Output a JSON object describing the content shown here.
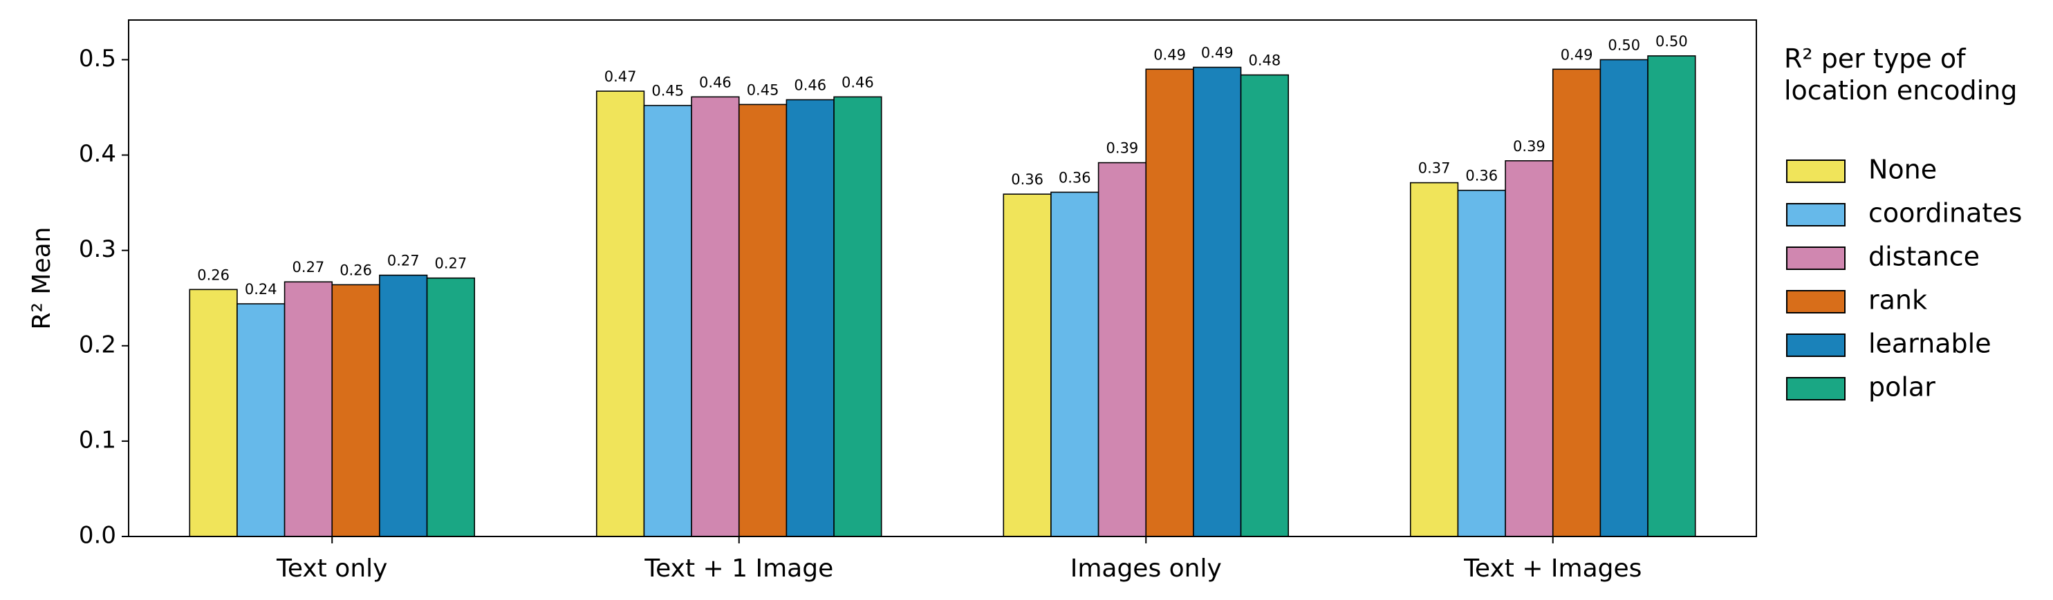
{
  "chart_data": {
    "type": "bar",
    "y_label": "R² Mean",
    "legend_title": "R² per type of location encoding",
    "categories": [
      "Text only",
      "Text + 1 Image",
      "Images only",
      "Text + Images"
    ],
    "series": [
      {
        "name": "None",
        "color": "#f0e45a",
        "values": [
          0.259,
          0.467,
          0.359,
          0.371
        ],
        "value_labels": [
          "0.26",
          "0.47",
          "0.36",
          "0.37"
        ]
      },
      {
        "name": "coordinates",
        "color": "#66b9ea",
        "values": [
          0.244,
          0.452,
          0.361,
          0.363
        ],
        "value_labels": [
          "0.24",
          "0.45",
          "0.36",
          "0.36"
        ]
      },
      {
        "name": "distance",
        "color": "#d087b0",
        "values": [
          0.267,
          0.461,
          0.392,
          0.394
        ],
        "value_labels": [
          "0.27",
          "0.46",
          "0.39",
          "0.39"
        ]
      },
      {
        "name": "rank",
        "color": "#d86e1a",
        "values": [
          0.264,
          0.453,
          0.49,
          0.49
        ],
        "value_labels": [
          "0.26",
          "0.45",
          "0.49",
          "0.49"
        ]
      },
      {
        "name": "learnable",
        "color": "#1a82ba",
        "values": [
          0.274,
          0.458,
          0.492,
          0.5
        ],
        "value_labels": [
          "0.27",
          "0.46",
          "0.49",
          "0.50"
        ]
      },
      {
        "name": "polar",
        "color": "#1aa784",
        "values": [
          0.271,
          0.461,
          0.484,
          0.504
        ],
        "value_labels": [
          "0.27",
          "0.46",
          "0.48",
          "0.50"
        ]
      }
    ],
    "ylim": [
      0,
      0.5416
    ],
    "yticks": [
      {
        "value": 0,
        "label": "0.0"
      },
      0.1,
      0.2,
      0.3,
      0.4,
      0.5
    ],
    "grid": false
  }
}
